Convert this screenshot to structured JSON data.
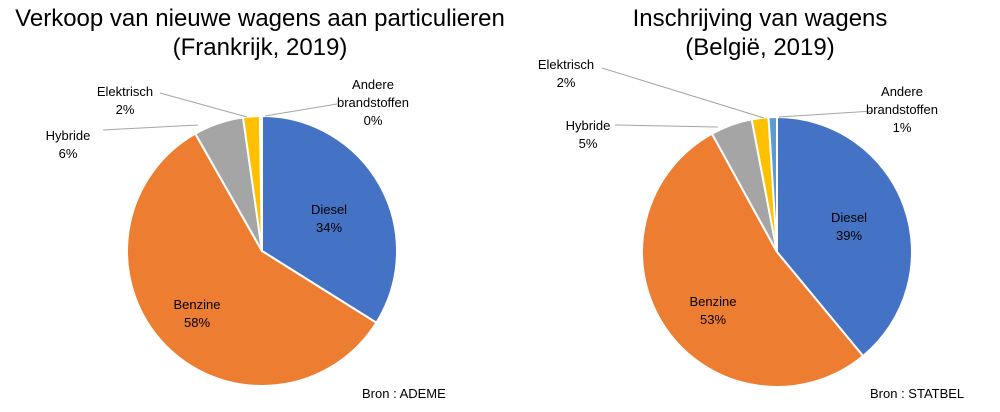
{
  "chart_data": [
    {
      "type": "pie",
      "title_line1": "Verkoop van nieuwe wagens aan particulieren",
      "title_line2": "(Frankrijk, 2019)",
      "source": "Bron : ADEME",
      "slices": [
        {
          "name": "Diesel",
          "value": 34,
          "label": "34%",
          "color": "#4472c4"
        },
        {
          "name": "Benzine",
          "value": 58,
          "label": "58%",
          "color": "#ed7d31"
        },
        {
          "name": "Hybride",
          "value": 6,
          "label": "6%",
          "color": "#a5a5a5"
        },
        {
          "name": "Elektrisch",
          "value": 2,
          "label": "2%",
          "color": "#ffc000"
        },
        {
          "name": "Andere brandstoffen",
          "name_lines": [
            "Andere",
            "brandstoffen"
          ],
          "value": 0.25,
          "label": "0%",
          "color": "#5b9bd5"
        }
      ]
    },
    {
      "type": "pie",
      "title_line1": "Inschrijving van wagens",
      "title_line2": "(België, 2019)",
      "source": "Bron : STATBEL",
      "slices": [
        {
          "name": "Diesel",
          "value": 39,
          "label": "39%",
          "color": "#4472c4"
        },
        {
          "name": "Benzine",
          "value": 53,
          "label": "53%",
          "color": "#ed7d31"
        },
        {
          "name": "Hybride",
          "value": 5,
          "label": "5%",
          "color": "#a5a5a5"
        },
        {
          "name": "Elektrisch",
          "value": 2,
          "label": "2%",
          "color": "#ffc000"
        },
        {
          "name": "Andere brandstoffen",
          "name_lines": [
            "Andere",
            "brandstoffen"
          ],
          "value": 1,
          "label": "1%",
          "color": "#5b9bd5"
        }
      ]
    }
  ]
}
